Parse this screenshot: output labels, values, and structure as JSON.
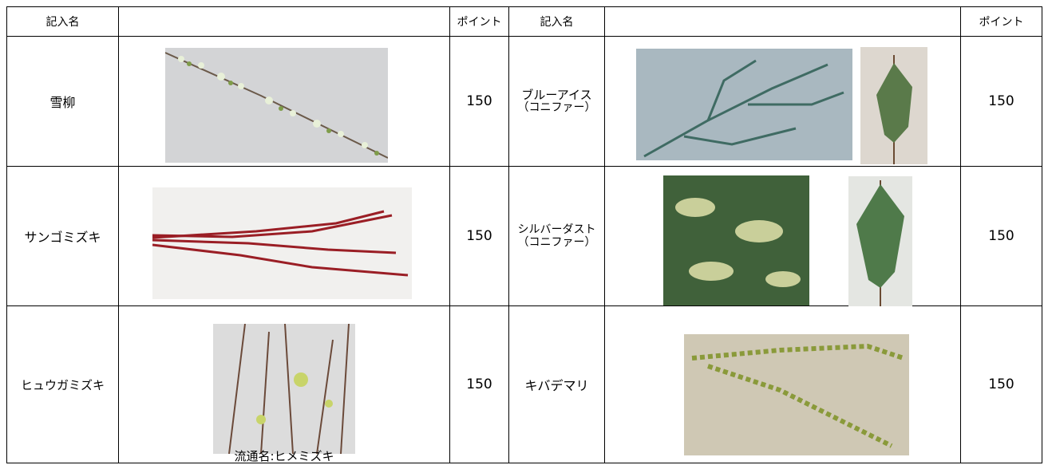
{
  "table": {
    "header": [
      "記入名",
      "ポイント",
      "記入名",
      "ポイント"
    ],
    "rows": [
      {
        "left": {
          "name": "雪柳",
          "points": 150
        },
        "right": {
          "name": [
            "ブルーアイス",
            "（コニファー）"
          ],
          "points": 150
        }
      },
      {
        "left": {
          "name": "サンゴミズキ",
          "points": 150
        },
        "right": {
          "name": [
            "シルバーダスト",
            "（コニファー）"
          ],
          "points": 150
        }
      },
      {
        "left": {
          "name": "ヒュウガミズキ",
          "caption": "流通名:ヒメミズキ",
          "points": 150
        },
        "right": {
          "name": [
            "キバデマリ"
          ],
          "points": 150
        }
      }
    ]
  }
}
